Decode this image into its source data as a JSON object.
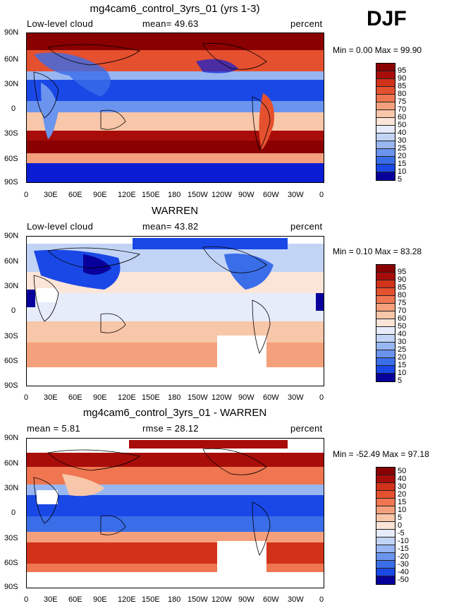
{
  "season": "DJF",
  "lon_ticks": [
    "0",
    "30E",
    "60E",
    "90E",
    "120E",
    "150E",
    "180",
    "150W",
    "120W",
    "90W",
    "60W",
    "30W",
    "0"
  ],
  "lat_ticks": [
    "90N",
    "60N",
    "30N",
    "0",
    "30S",
    "60S",
    "90S"
  ],
  "panels": [
    {
      "title": "mg4cam6_control_3yrs_01 (yrs 1-3)",
      "left_label": "Low-level cloud",
      "mid_label": "mean=  49.63",
      "right_label": "percent",
      "minmax": "Min =    0.00 Max =  99.90",
      "colorbar_labels": [
        "95",
        "90",
        "85",
        "80",
        "75",
        "70",
        "60",
        "50",
        "40",
        "30",
        "25",
        "20",
        "15",
        "10",
        "5"
      ]
    },
    {
      "title": "WARREN",
      "left_label": "Low-level cloud",
      "mid_label": "mean=  43.82",
      "right_label": "percent",
      "minmax": "Min =    0.10 Max =  83.28",
      "colorbar_labels": [
        "95",
        "90",
        "85",
        "80",
        "75",
        "70",
        "60",
        "50",
        "40",
        "30",
        "25",
        "20",
        "15",
        "10",
        "5"
      ]
    },
    {
      "title": "mg4cam6_control_3yrs_01 - WARREN",
      "left_label": "mean =    5.81",
      "mid_label": "rmse =   28.12",
      "right_label": "percent",
      "minmax": "Min = -52.49 Max =  97.18",
      "colorbar_labels": [
        "50",
        "40",
        "30",
        "20",
        "15",
        "10",
        "5",
        "0",
        "-5",
        "-10",
        "-15",
        "-20",
        "-30",
        "-40",
        "-50"
      ]
    }
  ],
  "colors": {
    "scale": [
      "#08009a",
      "#0a1dd4",
      "#1a48e6",
      "#3a6de8",
      "#6a94ee",
      "#98b6f2",
      "#c2d4f6",
      "#e6ecfa",
      "#fbe4d8",
      "#f8c6a8",
      "#f5a07c",
      "#ef7650",
      "#e5502f",
      "#d2321a",
      "#a80d0a",
      "#8a0000"
    ],
    "land_outline": "#000000"
  }
}
